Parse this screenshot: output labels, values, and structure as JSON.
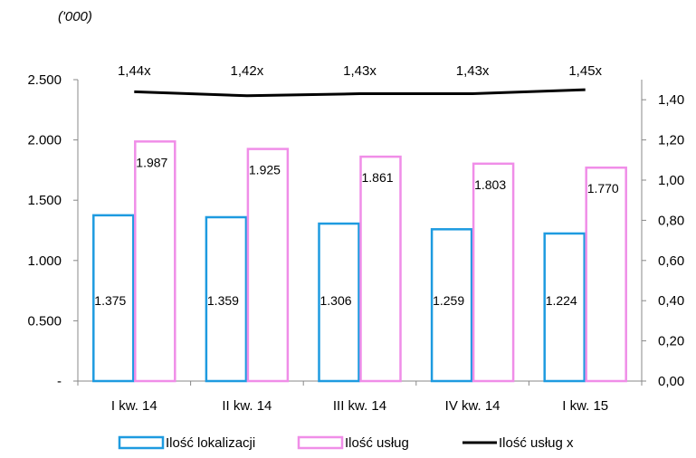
{
  "chart_data": {
    "type": "bar",
    "unit_label": "('000)",
    "categories": [
      "I kw. 14",
      "II kw. 14",
      "III kw. 14",
      "IV kw. 14",
      "I kw. 15"
    ],
    "series": [
      {
        "name": "Ilość lokalizacji",
        "values": [
          1375,
          1359,
          1306,
          1259,
          1224
        ],
        "labels": [
          "1.375",
          "1.359",
          "1.306",
          "1.259",
          "1.224"
        ],
        "color": "#1e9be0",
        "axis": "left"
      },
      {
        "name": "Ilość usług",
        "values": [
          1987,
          1925,
          1861,
          1803,
          1770
        ],
        "labels": [
          "1.987",
          "1.925",
          "1.861",
          "1.803",
          "1.770"
        ],
        "color": "#f08ee8",
        "axis": "left"
      },
      {
        "name": "Ilość usług x",
        "type": "line",
        "values": [
          1.44,
          1.42,
          1.43,
          1.43,
          1.45
        ],
        "labels": [
          "1,44x",
          "1,42x",
          "1,43x",
          "1,43x",
          "1,45x"
        ],
        "color": "#000000",
        "axis": "right"
      }
    ],
    "y_left": {
      "min": 0,
      "max": 2500,
      "ticks": [
        0,
        500,
        1000,
        1500,
        2000,
        2500
      ],
      "tick_labels": [
        "-",
        "0.500",
        "1.000",
        "1.500",
        "2.000",
        "2.500"
      ]
    },
    "y_right": {
      "min": 0,
      "max": 1.5,
      "ticks": [
        0,
        0.2,
        0.4,
        0.6,
        0.8,
        1.0,
        1.2,
        1.4
      ],
      "tick_labels": [
        "0,00",
        "0,20",
        "0,40",
        "0,60",
        "0,80",
        "1,00",
        "1,20",
        "1,40"
      ]
    },
    "grid": false,
    "legend_position": "bottom"
  }
}
